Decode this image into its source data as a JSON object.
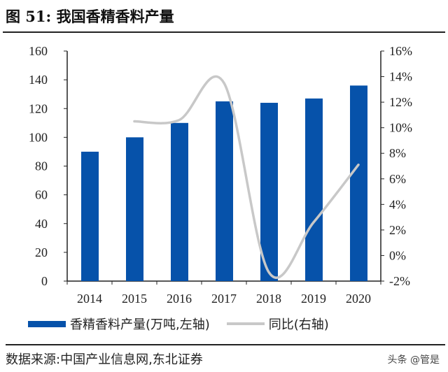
{
  "title": "图 51:  我国香精香料产量",
  "source": "数据来源:中国产业信息网,东北证券",
  "watermark": "头条 @管是",
  "chart_data": {
    "type": "bar",
    "categories": [
      "2014",
      "2015",
      "2016",
      "2017",
      "2018",
      "2019",
      "2020"
    ],
    "series": [
      {
        "name": "香精香料产量(万吨,左轴)",
        "type": "bar",
        "axis": "left",
        "color": "#0652AA",
        "values": [
          90,
          100,
          110,
          125,
          124,
          127,
          136
        ]
      },
      {
        "name": "同比(右轴)",
        "type": "line",
        "axis": "right",
        "color": "#C8C8C8",
        "values": [
          null,
          10.5,
          10.6,
          13.5,
          -1.3,
          2.6,
          7.1
        ]
      }
    ],
    "yleft": {
      "lim": [
        0,
        160
      ],
      "ticks": [
        "0",
        "20",
        "40",
        "60",
        "80",
        "100",
        "120",
        "140",
        "160"
      ]
    },
    "yright": {
      "lim": [
        -2,
        16
      ],
      "ticks": [
        "-2%",
        "0%",
        "2%",
        "4%",
        "6%",
        "8%",
        "10%",
        "12%",
        "14%",
        "16%"
      ]
    }
  }
}
